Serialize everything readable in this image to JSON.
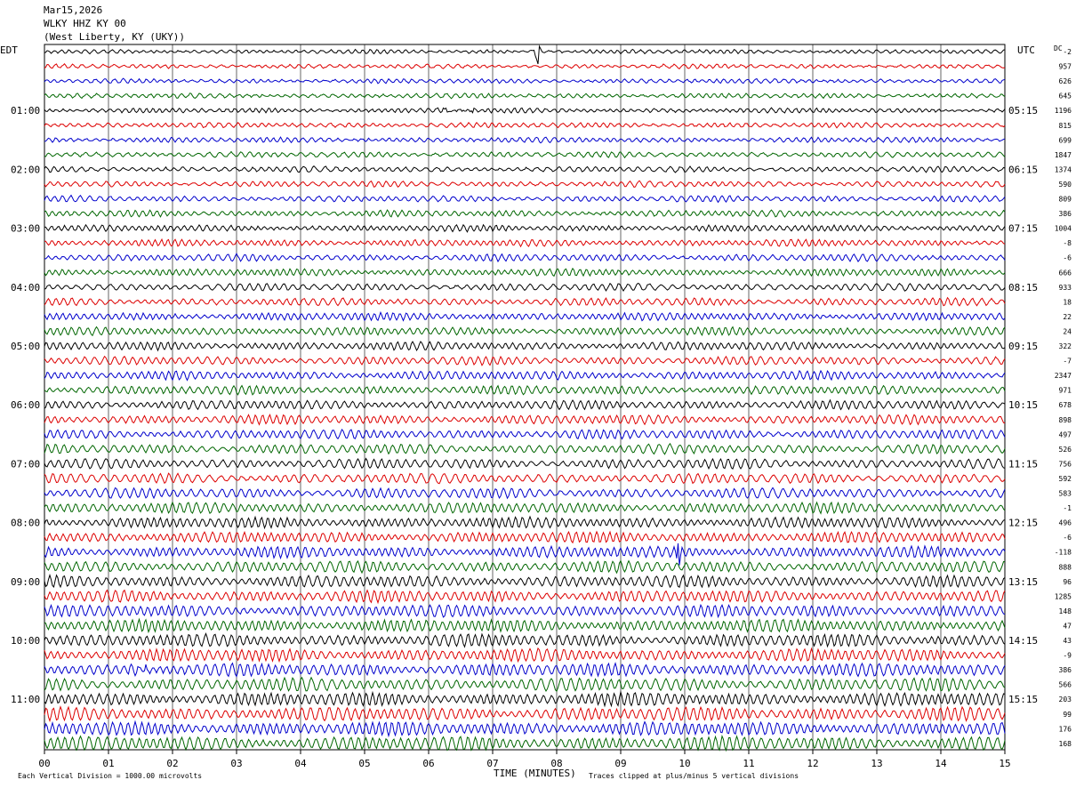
{
  "header": {
    "date": "Mar15,2026",
    "station": "WLKY HHZ KY 00",
    "location": "(West Liberty, KY (UKY))"
  },
  "left_axis_title": "EDT",
  "right_axis_title": "UTC",
  "dc_label": "DC",
  "footer": {
    "scale_note": "Each Vertical Division = 1000.00 microvolts",
    "clip_note": "Traces clipped at plus/minus 5 vertical divisions"
  },
  "colors": {
    "black": "#000000",
    "red": "#dd0000",
    "blue": "#0000cc",
    "green": "#006600",
    "grid": "#000000"
  },
  "chart_data": {
    "type": "line",
    "title": "",
    "xlabel": "TIME (MINUTES)",
    "x_ticks": [
      "00",
      "01",
      "02",
      "03",
      "04",
      "05",
      "06",
      "07",
      "08",
      "09",
      "10",
      "11",
      "12",
      "13",
      "14",
      "15"
    ],
    "xlim": [
      0,
      15
    ],
    "trace_minutes": 15,
    "trace_count": 48,
    "color_cycle": [
      "black",
      "red",
      "blue",
      "green"
    ],
    "left_time_labels": [
      "01:00",
      "02:00",
      "03:00",
      "04:00",
      "05:00",
      "06:00",
      "07:00",
      "08:00",
      "09:00",
      "10:00",
      "11:00"
    ],
    "right_time_labels": [
      "05:15",
      "06:15",
      "07:15",
      "08:15",
      "09:15",
      "10:15",
      "11:15",
      "12:15",
      "13:15",
      "14:15",
      "15:15"
    ],
    "label_every_n_traces": 4,
    "first_labeled_trace": 4,
    "dc_offsets": [
      "-2",
      "957",
      "626",
      "645",
      "1196",
      "815",
      "699",
      "1847",
      "1374",
      "590",
      "809",
      "386",
      "1004",
      "-8",
      "-6",
      "666",
      "933",
      "18",
      "22",
      "24",
      "322",
      "-7",
      "2347",
      "971",
      "678",
      "898",
      "497",
      "526",
      "756",
      "592",
      "583",
      "-1",
      "496",
      "-6",
      "-118",
      "888",
      "96",
      "1285",
      "148",
      "47",
      "43",
      "-9",
      "386",
      "566",
      "203",
      "99",
      "176",
      "168"
    ],
    "events": [
      {
        "trace": 0,
        "minute": 7.7,
        "kind": "spike"
      },
      {
        "trace": 4,
        "minute": 6.1,
        "kind": "burst"
      },
      {
        "trace": 34,
        "minute": 9.9,
        "kind": "spike"
      },
      {
        "trace": 42,
        "minute": 1.3,
        "kind": "burst"
      }
    ]
  }
}
